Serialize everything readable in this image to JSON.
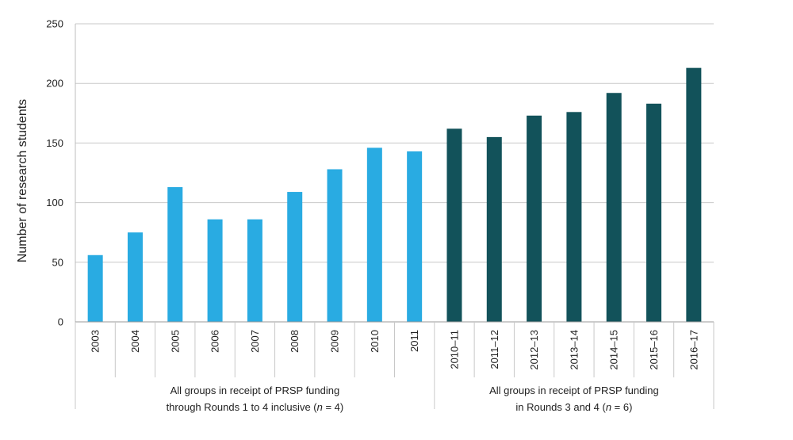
{
  "chart_data": {
    "type": "bar",
    "ylabel": "Number of research students",
    "xlabel": "",
    "ylim": [
      0,
      250
    ],
    "yticks": [
      0,
      50,
      100,
      150,
      200,
      250
    ],
    "grid": true,
    "categories": [
      "2003",
      "2004",
      "2005",
      "2006",
      "2007",
      "2008",
      "2009",
      "2010",
      "2011",
      "2010–11",
      "2011–12",
      "2012–13",
      "2013–14",
      "2014–15",
      "2015–16",
      "2016–17"
    ],
    "values": [
      56,
      75,
      113,
      86,
      86,
      109,
      128,
      146,
      143,
      162,
      155,
      173,
      176,
      192,
      183,
      213
    ],
    "groups": [
      {
        "start": 0,
        "end": 8,
        "label_line1": "All groups in receipt of PRSP funding",
        "label_line2_prefix": "through Rounds 1 to 4 inclusive (",
        "label_line2_var": "n",
        "label_line2_suffix": " = 4)",
        "color": "#29abe2"
      },
      {
        "start": 9,
        "end": 15,
        "label_line1": "All groups in receipt of PRSP funding",
        "label_line2_prefix": "in Rounds 3 and 4 (",
        "label_line2_var": "n",
        "label_line2_suffix": " = 6)",
        "color": "#12525a"
      }
    ]
  }
}
